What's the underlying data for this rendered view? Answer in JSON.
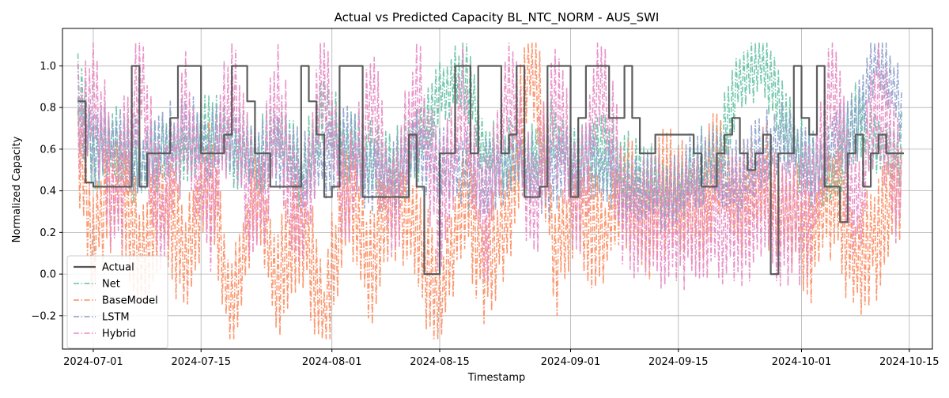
{
  "chart_data": {
    "type": "line",
    "title": "Actual vs Predicted Capacity BL_NTC_NORM - AUS_SWI",
    "xlabel": "Timestamp",
    "ylabel": "Normalized Capacity",
    "xlim": [
      "2024-06-27",
      "2024-10-18"
    ],
    "ylim": [
      -0.36,
      1.18
    ],
    "x_ticks": [
      "2024-07-01",
      "2024-07-15",
      "2024-08-01",
      "2024-08-15",
      "2024-09-01",
      "2024-09-15",
      "2024-10-01",
      "2024-10-15"
    ],
    "y_ticks": [
      -0.2,
      0.0,
      0.2,
      0.4,
      0.6,
      0.8,
      1.0
    ],
    "y_tick_labels": [
      "−0.2",
      "0.0",
      "0.2",
      "0.4",
      "0.6",
      "0.8",
      "1.0"
    ],
    "grid": true,
    "legend_position": "lower-left",
    "series": [
      {
        "name": "Actual",
        "color": "#555555",
        "style": "solid",
        "x": [
          "2024-06-29",
          "2024-06-30",
          "2024-07-01",
          "2024-07-02",
          "2024-07-03",
          "2024-07-04",
          "2024-07-05",
          "2024-07-06",
          "2024-07-07",
          "2024-07-08",
          "2024-07-09",
          "2024-07-10",
          "2024-07-11",
          "2024-07-12",
          "2024-07-13",
          "2024-07-14",
          "2024-07-15",
          "2024-07-16",
          "2024-07-17",
          "2024-07-18",
          "2024-07-19",
          "2024-07-20",
          "2024-07-21",
          "2024-07-22",
          "2024-07-23",
          "2024-07-24",
          "2024-07-25",
          "2024-07-26",
          "2024-07-27",
          "2024-07-28",
          "2024-07-29",
          "2024-07-30",
          "2024-07-31",
          "2024-08-01",
          "2024-08-02",
          "2024-08-03",
          "2024-08-04",
          "2024-08-05",
          "2024-08-06",
          "2024-08-07",
          "2024-08-08",
          "2024-08-09",
          "2024-08-10",
          "2024-08-11",
          "2024-08-12",
          "2024-08-13",
          "2024-08-14",
          "2024-08-15",
          "2024-08-16",
          "2024-08-17",
          "2024-08-18",
          "2024-08-19",
          "2024-08-20",
          "2024-08-21",
          "2024-08-22",
          "2024-08-23",
          "2024-08-24",
          "2024-08-25",
          "2024-08-26",
          "2024-08-27",
          "2024-08-28",
          "2024-08-29",
          "2024-08-30",
          "2024-08-31",
          "2024-09-01",
          "2024-09-02",
          "2024-09-03",
          "2024-09-04",
          "2024-09-05",
          "2024-09-06",
          "2024-09-07",
          "2024-09-08",
          "2024-09-09",
          "2024-09-10",
          "2024-09-11",
          "2024-09-12",
          "2024-09-13",
          "2024-09-14",
          "2024-09-15",
          "2024-09-16",
          "2024-09-17",
          "2024-09-18",
          "2024-09-19",
          "2024-09-20",
          "2024-09-21",
          "2024-09-22",
          "2024-09-23",
          "2024-09-24",
          "2024-09-25",
          "2024-09-26",
          "2024-09-27",
          "2024-09-28",
          "2024-09-29",
          "2024-09-30",
          "2024-10-01",
          "2024-10-02",
          "2024-10-03",
          "2024-10-04",
          "2024-10-05",
          "2024-10-06",
          "2024-10-07",
          "2024-10-08",
          "2024-10-09",
          "2024-10-10",
          "2024-10-11",
          "2024-10-12",
          "2024-10-13",
          "2024-10-14"
        ],
        "values": [
          0.83,
          0.44,
          0.42,
          0.42,
          0.42,
          0.42,
          0.42,
          1.0,
          0.42,
          0.58,
          0.58,
          0.58,
          0.75,
          1.0,
          1.0,
          1.0,
          0.58,
          0.58,
          0.58,
          0.67,
          1.0,
          1.0,
          0.83,
          0.58,
          0.58,
          0.42,
          0.42,
          0.42,
          0.42,
          1.0,
          0.83,
          0.67,
          0.37,
          0.42,
          1.0,
          1.0,
          1.0,
          0.37,
          0.37,
          0.37,
          0.37,
          0.37,
          0.37,
          0.67,
          0.42,
          0.0,
          0.0,
          0.58,
          0.58,
          1.0,
          1.0,
          0.58,
          1.0,
          1.0,
          1.0,
          0.58,
          0.67,
          1.0,
          0.37,
          0.37,
          0.42,
          1.0,
          1.0,
          1.0,
          0.37,
          0.75,
          1.0,
          1.0,
          1.0,
          0.75,
          0.75,
          1.0,
          0.75,
          0.58,
          0.58,
          0.67,
          0.67,
          0.67,
          0.67,
          0.67,
          0.58,
          0.42,
          0.42,
          0.58,
          0.67,
          0.75,
          0.58,
          0.5,
          0.58,
          0.67,
          0.0,
          0.58,
          0.58,
          1.0,
          0.75,
          0.67,
          1.0,
          0.42,
          0.42,
          0.25,
          0.58,
          0.67,
          0.42,
          0.58,
          0.67,
          0.58,
          0.58,
          0.58
        ]
      },
      {
        "name": "Net",
        "color": "#66c2a5",
        "style": "dashdot",
        "x": [
          "2024-06-29",
          "2024-07-01",
          "2024-07-04",
          "2024-07-07",
          "2024-07-10",
          "2024-07-13",
          "2024-07-16",
          "2024-07-19",
          "2024-07-22",
          "2024-07-25",
          "2024-07-28",
          "2024-07-31",
          "2024-08-03",
          "2024-08-06",
          "2024-08-09",
          "2024-08-12",
          "2024-08-15",
          "2024-08-18",
          "2024-08-21",
          "2024-08-24",
          "2024-08-27",
          "2024-08-30",
          "2024-09-02",
          "2024-09-05",
          "2024-09-08",
          "2024-09-11",
          "2024-09-14",
          "2024-09-17",
          "2024-09-20",
          "2024-09-23",
          "2024-09-26",
          "2024-09-29",
          "2024-10-02",
          "2024-10-05",
          "2024-10-08",
          "2024-10-11",
          "2024-10-14"
        ],
        "values": [
          0.98,
          0.55,
          0.62,
          0.5,
          0.6,
          0.55,
          0.7,
          0.6,
          0.55,
          0.65,
          0.5,
          0.82,
          0.6,
          0.55,
          0.5,
          0.62,
          0.85,
          0.98,
          0.6,
          0.55,
          0.58,
          0.65,
          0.55,
          0.6,
          0.5,
          0.45,
          0.4,
          0.5,
          0.55,
          0.95,
          1.0,
          0.7,
          0.5,
          0.45,
          0.75,
          0.6,
          0.6
        ]
      },
      {
        "name": "BaseModel",
        "color": "#fc8d62",
        "style": "dashdot",
        "x": [
          "2024-06-29",
          "2024-07-01",
          "2024-07-04",
          "2024-07-07",
          "2024-07-10",
          "2024-07-13",
          "2024-07-16",
          "2024-07-19",
          "2024-07-22",
          "2024-07-25",
          "2024-07-28",
          "2024-07-31",
          "2024-08-03",
          "2024-08-06",
          "2024-08-09",
          "2024-08-12",
          "2024-08-15",
          "2024-08-18",
          "2024-08-21",
          "2024-08-24",
          "2024-08-27",
          "2024-08-30",
          "2024-09-02",
          "2024-09-05",
          "2024-09-08",
          "2024-09-11",
          "2024-09-14",
          "2024-09-17",
          "2024-09-20",
          "2024-09-23",
          "2024-09-26",
          "2024-09-29",
          "2024-10-02",
          "2024-10-05",
          "2024-10-08",
          "2024-10-11",
          "2024-10-14"
        ],
        "values": [
          0.65,
          0.2,
          0.45,
          0.1,
          0.35,
          0.05,
          0.5,
          -0.2,
          0.4,
          -0.05,
          0.3,
          -0.25,
          0.45,
          0.05,
          0.35,
          0.2,
          -0.2,
          0.4,
          0.05,
          0.3,
          1.08,
          0.1,
          0.35,
          0.15,
          0.4,
          0.25,
          0.45,
          0.3,
          0.5,
          0.35,
          0.45,
          0.3,
          0.15,
          0.4,
          0.05,
          0.2,
          0.4
        ]
      },
      {
        "name": "LSTM",
        "color": "#8da0cb",
        "style": "dashdot",
        "x": [
          "2024-06-29",
          "2024-07-01",
          "2024-07-04",
          "2024-07-07",
          "2024-07-10",
          "2024-07-13",
          "2024-07-16",
          "2024-07-19",
          "2024-07-22",
          "2024-07-25",
          "2024-07-28",
          "2024-07-31",
          "2024-08-03",
          "2024-08-06",
          "2024-08-09",
          "2024-08-12",
          "2024-08-15",
          "2024-08-18",
          "2024-08-21",
          "2024-08-24",
          "2024-08-27",
          "2024-08-30",
          "2024-09-02",
          "2024-09-05",
          "2024-09-08",
          "2024-09-11",
          "2024-09-14",
          "2024-09-17",
          "2024-09-20",
          "2024-09-23",
          "2024-09-26",
          "2024-09-29",
          "2024-10-02",
          "2024-10-05",
          "2024-10-08",
          "2024-10-11",
          "2024-10-14"
        ],
        "values": [
          0.75,
          0.6,
          0.65,
          0.55,
          0.6,
          0.7,
          0.6,
          0.65,
          0.55,
          0.6,
          0.5,
          0.55,
          0.65,
          0.45,
          0.5,
          0.6,
          0.55,
          0.5,
          0.45,
          0.55,
          0.5,
          0.45,
          0.55,
          0.5,
          0.4,
          0.45,
          0.35,
          0.5,
          0.55,
          0.45,
          0.6,
          0.65,
          0.5,
          0.6,
          0.7,
          1.1,
          0.8
        ]
      },
      {
        "name": "Hybrid",
        "color": "#e78ac3",
        "style": "dashdot",
        "x": [
          "2024-06-29",
          "2024-07-01",
          "2024-07-04",
          "2024-07-07",
          "2024-07-10",
          "2024-07-13",
          "2024-07-16",
          "2024-07-19",
          "2024-07-22",
          "2024-07-25",
          "2024-07-28",
          "2024-07-31",
          "2024-08-03",
          "2024-08-06",
          "2024-08-09",
          "2024-08-12",
          "2024-08-15",
          "2024-08-18",
          "2024-08-21",
          "2024-08-24",
          "2024-08-27",
          "2024-08-30",
          "2024-09-02",
          "2024-09-05",
          "2024-09-08",
          "2024-09-11",
          "2024-09-14",
          "2024-09-17",
          "2024-09-20",
          "2024-09-23",
          "2024-09-26",
          "2024-09-29",
          "2024-10-02",
          "2024-10-05",
          "2024-10-08",
          "2024-10-11",
          "2024-10-14"
        ],
        "values": [
          0.7,
          0.9,
          0.3,
          0.95,
          0.25,
          0.75,
          0.3,
          0.9,
          0.25,
          0.8,
          0.2,
          0.95,
          0.3,
          0.85,
          0.25,
          0.9,
          0.3,
          0.85,
          0.25,
          0.95,
          0.3,
          0.8,
          0.35,
          0.95,
          0.3,
          0.25,
          0.25,
          0.25,
          0.25,
          0.25,
          0.3,
          0.25,
          0.3,
          0.95,
          0.3,
          0.9,
          0.35
        ]
      }
    ]
  }
}
